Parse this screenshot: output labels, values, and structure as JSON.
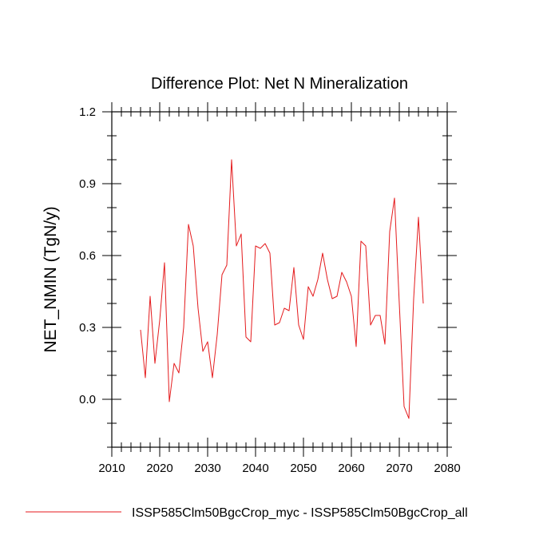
{
  "chart_data": {
    "type": "line",
    "title": "Difference Plot: Net N Mineralization",
    "xlabel": "",
    "ylabel": "NET_NMIN  (TgN/y)",
    "xlim": [
      2010,
      2080
    ],
    "ylim": [
      -0.2,
      1.2
    ],
    "xticks": [
      2010,
      2020,
      2030,
      2040,
      2050,
      2060,
      2070,
      2080
    ],
    "yticks": [
      0.0,
      0.3,
      0.6,
      0.9,
      1.2
    ],
    "ytick_labels": [
      "0.0",
      "0.3",
      "0.6",
      "0.9",
      "1.2"
    ],
    "grid": false,
    "legend_position": "bottom",
    "series": [
      {
        "name": "ISSP585Clm50BgcCrop_myc - ISSP585Clm50BgcCrop_all",
        "color": "#e41a1c",
        "x": [
          2016,
          2017,
          2018,
          2019,
          2020,
          2021,
          2022,
          2023,
          2024,
          2025,
          2026,
          2027,
          2028,
          2029,
          2030,
          2031,
          2032,
          2033,
          2034,
          2035,
          2036,
          2037,
          2038,
          2039,
          2040,
          2041,
          2042,
          2043,
          2044,
          2045,
          2046,
          2047,
          2048,
          2049,
          2050,
          2051,
          2052,
          2053,
          2054,
          2055,
          2056,
          2057,
          2058,
          2059,
          2060,
          2061,
          2062,
          2063,
          2064,
          2065,
          2066,
          2067,
          2068,
          2069,
          2070,
          2071,
          2072,
          2073,
          2074,
          2075
        ],
        "y": [
          0.29,
          0.09,
          0.43,
          0.15,
          0.33,
          0.57,
          -0.01,
          0.15,
          0.11,
          0.3,
          0.73,
          0.64,
          0.38,
          0.2,
          0.24,
          0.09,
          0.27,
          0.52,
          0.56,
          1.0,
          0.64,
          0.69,
          0.26,
          0.24,
          0.64,
          0.63,
          0.65,
          0.61,
          0.31,
          0.32,
          0.38,
          0.37,
          0.55,
          0.31,
          0.25,
          0.47,
          0.43,
          0.5,
          0.61,
          0.5,
          0.42,
          0.43,
          0.53,
          0.49,
          0.43,
          0.22,
          0.66,
          0.64,
          0.31,
          0.35,
          0.35,
          0.23,
          0.7,
          0.84,
          0.4,
          -0.03,
          -0.08,
          0.42,
          0.76,
          0.4
        ]
      }
    ]
  }
}
